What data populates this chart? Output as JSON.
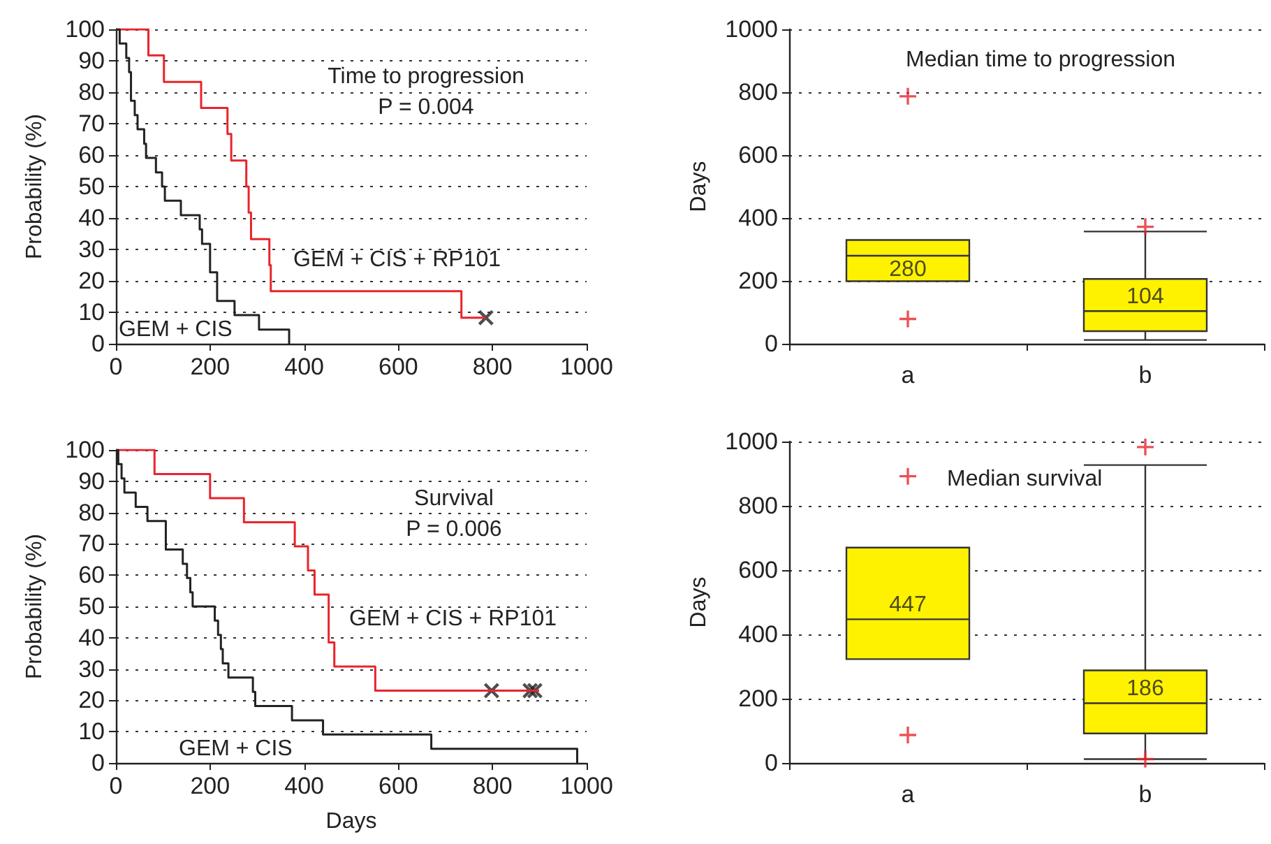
{
  "chart_data": [
    {
      "type": "step",
      "title": "Time to progression",
      "subtitle": "P = 0.004",
      "ylabel": "Probability (%)",
      "xlim": [
        0,
        1000
      ],
      "xticks": [
        0,
        200,
        400,
        600,
        800,
        1000
      ],
      "ylim": [
        0,
        100
      ],
      "yticks": [
        0,
        10,
        20,
        30,
        40,
        50,
        60,
        70,
        80,
        90,
        100
      ],
      "grid": "y",
      "legend": false,
      "series": [
        {
          "name": "GEM + CIS + RP101",
          "color": "#e8242b",
          "marker": "none",
          "x": [
            0,
            69,
            102,
            181,
            237,
            245,
            277,
            282,
            287,
            326,
            329,
            734,
            786
          ],
          "values": [
            100,
            91.7,
            83.3,
            75,
            66.7,
            58.3,
            50,
            41.7,
            33.3,
            25,
            16.7,
            8.3,
            8.3
          ]
        },
        {
          "name": "GEM + CIS",
          "color": "#222222",
          "marker": "none",
          "x": [
            0,
            8,
            22,
            28,
            32,
            40,
            46,
            60,
            64,
            85,
            98,
            104,
            138,
            178,
            183,
            200,
            215,
            252,
            304,
            368
          ],
          "values": [
            100,
            95.5,
            90.9,
            86.4,
            77.3,
            72.7,
            68.2,
            63.6,
            59.1,
            54.5,
            50,
            45.5,
            40.9,
            36.4,
            31.8,
            22.7,
            13.6,
            9.1,
            4.5,
            0
          ]
        },
        {
          "type": "scatter",
          "color": "#222222",
          "marker": "cross",
          "x": [
            786
          ],
          "values": [
            8.3
          ]
        }
      ]
    },
    {
      "type": "box",
      "title": "Median time to progression",
      "ylabel": "Days",
      "categories": [
        "a",
        "b"
      ],
      "ylim": [
        0,
        1000
      ],
      "yticks": [
        0,
        200,
        400,
        600,
        800,
        1000
      ],
      "grid": "y",
      "legend": false,
      "annotations": [
        {
          "text": "280",
          "x": "a",
          "y": 280
        },
        {
          "text": "104",
          "x": "b",
          "y": 104
        }
      ],
      "series": [
        {
          "color": "#fff200",
          "boxes": [
            {
              "low": 199,
              "q1": 199,
              "median": 280,
              "q3": 330,
              "high": 330,
              "outliers": [
                787,
                79
              ]
            },
            {
              "low": 12,
              "q1": 40,
              "median": 104,
              "q3": 206,
              "high": 357,
              "outliers": [
                372
              ]
            }
          ]
        }
      ]
    },
    {
      "type": "step",
      "title": "Survival",
      "subtitle": "P = 0.006",
      "xlabel": "Days",
      "ylabel": "Probability (%)",
      "xlim": [
        0,
        1000
      ],
      "xticks": [
        0,
        200,
        400,
        600,
        800,
        1000
      ],
      "ylim": [
        0,
        100
      ],
      "yticks": [
        0,
        10,
        20,
        30,
        40,
        50,
        60,
        70,
        80,
        90,
        100
      ],
      "grid": "y",
      "legend": false,
      "series": [
        {
          "name": "GEM + CIS + RP101",
          "color": "#e8242b",
          "marker": "none",
          "x": [
            0,
            82,
            200,
            272,
            380,
            408,
            422,
            452,
            464,
            551,
            899
          ],
          "values": [
            100,
            92.3,
            84.6,
            76.9,
            69.2,
            61.5,
            53.8,
            38.5,
            30.8,
            23.1,
            23.1
          ]
        },
        {
          "name": "GEM + CIS",
          "color": "#222222",
          "marker": "none",
          "x": [
            0,
            5,
            12,
            18,
            42,
            67,
            106,
            142,
            151,
            158,
            163,
            210,
            217,
            223,
            227,
            239,
            291,
            296,
            374,
            440,
            670,
            980
          ],
          "values": [
            100,
            95.5,
            90.9,
            86.4,
            81.8,
            77.3,
            68.2,
            63.6,
            59.1,
            54.5,
            50,
            45.5,
            40.9,
            36.4,
            31.8,
            27.3,
            22.7,
            18.2,
            13.6,
            9.1,
            4.5,
            0
          ]
        },
        {
          "type": "scatter",
          "color": "#222222",
          "marker": "cross",
          "x": [
            798,
            880,
            890
          ],
          "values": [
            23.1,
            23.1,
            23.1
          ]
        }
      ]
    },
    {
      "type": "box",
      "title": "Median survival",
      "ylabel": "Days",
      "categories": [
        "a",
        "b"
      ],
      "ylim": [
        0,
        1000
      ],
      "yticks": [
        0,
        200,
        400,
        600,
        800,
        1000
      ],
      "grid": "y",
      "legend": false,
      "annotations": [
        {
          "text": "447",
          "x": "a",
          "y": 447
        },
        {
          "text": "186",
          "x": "b",
          "y": 186
        }
      ],
      "series": [
        {
          "color": "#fff200",
          "boxes": [
            {
              "low": 323,
              "q1": 323,
              "median": 447,
              "q3": 670,
              "high": 670,
              "outliers": [
                892,
                87
              ]
            },
            {
              "low": 12,
              "q1": 92,
              "median": 186,
              "q3": 288,
              "high": 927,
              "outliers": [
                983,
                12
              ]
            }
          ]
        }
      ]
    }
  ]
}
